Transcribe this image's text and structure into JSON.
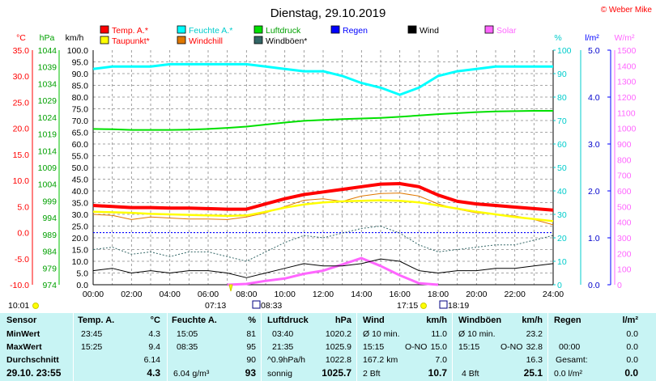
{
  "title": "Dienstag, 29.10.2019",
  "copyright": "© Weber Mike",
  "colors": {
    "temp": "#ff0000",
    "feuchte": "#00ffff",
    "luftdruck": "#00e000",
    "regen": "#0000ff",
    "wind": "#000000",
    "solar": "#ff66ff",
    "taupunkt": "#ffff00",
    "windchill": "#e07800",
    "windboeen": "#336666",
    "grid": "#888888"
  },
  "legend": [
    {
      "label": "Temp. A.*",
      "color": "#ff0000"
    },
    {
      "label": "Feuchte A.*",
      "color": "#00ffff"
    },
    {
      "label": "Luftdruck",
      "color": "#00e000"
    },
    {
      "label": "Regen",
      "color": "#0000ff"
    },
    {
      "label": "Wind",
      "color": "#000000"
    },
    {
      "label": "Solar",
      "color": "#ff66ff"
    },
    {
      "label": "Taupunkt*",
      "color": "#ffff00"
    },
    {
      "label": "Windchill",
      "color": "#e07800"
    },
    {
      "label": "Windböen*",
      "color": "#336666"
    }
  ],
  "legend_text_colors": {
    "Temp. A.*": "#ff0000",
    "Feuchte A.*": "#00cccc",
    "Luftdruck": "#00a000",
    "Regen": "#0000ff",
    "Wind": "#000000",
    "Solar": "#ff66ff",
    "Taupunkt*": "#ff0000",
    "Windchill": "#ff0000",
    "Windböen*": "#000000"
  },
  "axis_units": {
    "temp": "°C",
    "hpa": "hPa",
    "kmh": "km/h",
    "pct": "%",
    "lm2": "l/m²",
    "wm2": "W/m²"
  },
  "axes": {
    "temp": [
      "35.0",
      "30.0",
      "25.0",
      "20.0",
      "15.0",
      "10.0",
      "5.0",
      "0.0",
      "-5.0",
      "-10.0"
    ],
    "hpa": [
      "1044",
      "1039",
      "1034",
      "1029",
      "1024",
      "1019",
      "1014",
      "1009",
      "1004",
      "999",
      "994",
      "989",
      "984",
      "979",
      "974"
    ],
    "kmh": [
      "100.0",
      "95.0",
      "90.0",
      "85.0",
      "80.0",
      "75.0",
      "70.0",
      "65.0",
      "60.0",
      "55.0",
      "50.0",
      "45.0",
      "40.0",
      "35.0",
      "30.0",
      "25.0",
      "20.0",
      "15.0",
      "10.0",
      "5.0",
      "0.0"
    ],
    "pct": [
      "100",
      "90",
      "80",
      "70",
      "60",
      "50",
      "40",
      "30",
      "20",
      "10",
      "0"
    ],
    "lm2": [
      "5.0",
      "4.0",
      "3.0",
      "2.0",
      "1.0",
      "0.0"
    ],
    "wm2": [
      "1500",
      "1400",
      "1300",
      "1200",
      "1100",
      "1000",
      "900",
      "800",
      "700",
      "600",
      "500",
      "400",
      "300",
      "200",
      "100",
      "0"
    ]
  },
  "x_ticks": [
    "00:00",
    "02:00",
    "04:00",
    "06:00",
    "08:00",
    "10:00",
    "12:00",
    "14:00",
    "16:00",
    "18:00",
    "20:00",
    "22:00",
    "24:00"
  ],
  "events": {
    "left": "10:01",
    "sunrise": "07:13",
    "moonrise": "08:33",
    "sunset": "17:15",
    "moonset": "18:19"
  },
  "chart_data": {
    "type": "line",
    "x": [
      "00:00",
      "01:00",
      "02:00",
      "03:00",
      "04:00",
      "05:00",
      "06:00",
      "07:00",
      "08:00",
      "09:00",
      "10:00",
      "11:00",
      "12:00",
      "13:00",
      "14:00",
      "15:00",
      "16:00",
      "17:00",
      "18:00",
      "19:00",
      "20:00",
      "21:00",
      "22:00",
      "23:00",
      "24:00"
    ],
    "xlim": [
      "00:00",
      "24:00"
    ],
    "series": [
      {
        "name": "Temp. A.*",
        "axis": "temp",
        "unit": "°C",
        "values": [
          5.2,
          5.0,
          4.8,
          4.8,
          4.7,
          4.7,
          4.6,
          4.5,
          4.5,
          5.5,
          6.5,
          7.3,
          7.8,
          8.3,
          8.8,
          9.3,
          9.4,
          8.8,
          7.2,
          6.0,
          5.5,
          5.2,
          4.9,
          4.6,
          4.3
        ]
      },
      {
        "name": "Feuchte A.*",
        "axis": "pct",
        "unit": "%",
        "values": [
          92,
          93,
          93,
          93,
          94,
          94,
          94,
          94,
          94,
          93,
          92,
          91,
          91,
          89,
          86,
          84,
          81,
          84,
          89,
          91,
          92,
          93,
          93,
          93,
          93
        ]
      },
      {
        "name": "Luftdruck",
        "axis": "hpa",
        "unit": "hPa",
        "values": [
          1020.5,
          1020.4,
          1020.2,
          1020.2,
          1020.2,
          1020.3,
          1020.5,
          1020.8,
          1021.2,
          1021.8,
          1022.4,
          1022.9,
          1023.2,
          1023.4,
          1023.6,
          1023.8,
          1024.1,
          1024.5,
          1024.9,
          1025.2,
          1025.5,
          1025.7,
          1025.8,
          1025.9,
          1025.9
        ]
      },
      {
        "name": "Regen",
        "axis": "lm2",
        "unit": "l/m²",
        "values": [
          0,
          0,
          0,
          0,
          0,
          0,
          0,
          0,
          0,
          0,
          0,
          0,
          0,
          0,
          0,
          0,
          0,
          0,
          0,
          0,
          0,
          0,
          0,
          0,
          0
        ]
      },
      {
        "name": "Wind",
        "axis": "kmh",
        "unit": "km/h",
        "values": [
          6,
          7,
          5,
          6,
          5,
          6,
          6,
          5,
          3,
          5,
          7,
          9,
          8,
          8,
          9,
          11,
          10,
          6,
          5,
          6,
          6,
          7,
          7,
          8,
          9
        ]
      },
      {
        "name": "Solar",
        "axis": "wm2",
        "unit": "W/m²",
        "values": [
          0,
          0,
          0,
          0,
          0,
          0,
          0,
          0,
          5,
          25,
          40,
          70,
          90,
          130,
          170,
          120,
          60,
          10,
          0,
          0,
          0,
          0,
          0,
          0,
          0
        ]
      },
      {
        "name": "Taupunkt*",
        "axis": "temp",
        "unit": "°C",
        "values": [
          4.0,
          3.9,
          3.8,
          3.6,
          3.5,
          3.4,
          3.3,
          3.2,
          3.3,
          4.0,
          4.8,
          5.4,
          5.8,
          6.0,
          6.1,
          6.2,
          6.1,
          5.8,
          5.2,
          4.6,
          4.0,
          3.5,
          3.0,
          2.6,
          2.2
        ]
      },
      {
        "name": "Windchill",
        "axis": "temp",
        "unit": "°C",
        "values": [
          3.5,
          3.3,
          2.5,
          3.0,
          2.8,
          2.6,
          2.6,
          2.5,
          3.0,
          3.8,
          5.0,
          6.2,
          6.5,
          6.0,
          7.0,
          7.5,
          7.6,
          7.0,
          5.5,
          4.5,
          3.8,
          3.5,
          3.2,
          2.5,
          1.5
        ]
      },
      {
        "name": "Windböen*",
        "axis": "kmh",
        "unit": "km/h",
        "values": [
          15,
          16,
          13,
          14,
          12,
          14,
          14,
          12,
          10,
          14,
          18,
          21,
          20,
          22,
          24,
          25,
          22,
          17,
          14,
          15,
          16,
          17,
          17,
          19,
          21
        ]
      }
    ],
    "reference_lines": [
      {
        "axis": "temp",
        "value": 0.0,
        "style": "dotted",
        "color": "#0000ff"
      }
    ],
    "grid": true,
    "legend_position": "top"
  },
  "table": {
    "sensor": {
      "header": "Sensor",
      "rows": [
        "MinWert",
        "MaxWert",
        "Durchschnitt",
        "29.10. 23:55"
      ]
    },
    "temp": {
      "header": "Temp. A.",
      "unit": "°C",
      "rows": [
        [
          "23:45",
          "4.3"
        ],
        [
          "15:25",
          "9.4"
        ],
        [
          "",
          "6.14"
        ],
        [
          "",
          "4.3"
        ]
      ]
    },
    "feuchte": {
      "header": "Feuchte A.",
      "unit": "%",
      "rows": [
        [
          "15:05",
          "81"
        ],
        [
          "08:35",
          "95"
        ],
        [
          "",
          "90"
        ],
        [
          "6.04 g/m³",
          "93"
        ]
      ]
    },
    "luftdruck": {
      "header": "Luftdruck",
      "unit": "hPa",
      "rows": [
        [
          "03:40",
          "1020.2"
        ],
        [
          "21:35",
          "1025.9"
        ],
        [
          "^0.9hPa/h",
          "1022.8"
        ],
        [
          "sonnig",
          "1025.7"
        ]
      ]
    },
    "wind": {
      "header": "Wind",
      "unit": "km/h",
      "rows": [
        [
          "Ø 10 min.",
          "",
          "11.0"
        ],
        [
          "15:15",
          "O-NO",
          "15.0"
        ],
        [
          "167.2 km",
          "",
          "7.0"
        ],
        [
          "2 Bft",
          "",
          "10.7"
        ]
      ]
    },
    "boeen": {
      "header": "Windböen",
      "unit": "km/h",
      "rows": [
        [
          "Ø 10 min.",
          "",
          "23.2"
        ],
        [
          "15:15",
          "O-NO",
          "32.8"
        ],
        [
          "",
          "",
          "16.3"
        ],
        [
          "4 Bft",
          "",
          "25.1"
        ]
      ]
    },
    "regen": {
      "header": "Regen",
      "unit": "l/m²",
      "rows": [
        [
          "",
          "0.0"
        ],
        [
          "00:00",
          "0.0"
        ],
        [
          "Gesamt:",
          "0.0"
        ],
        [
          "0.0 l/m²",
          "0.0"
        ]
      ]
    }
  }
}
